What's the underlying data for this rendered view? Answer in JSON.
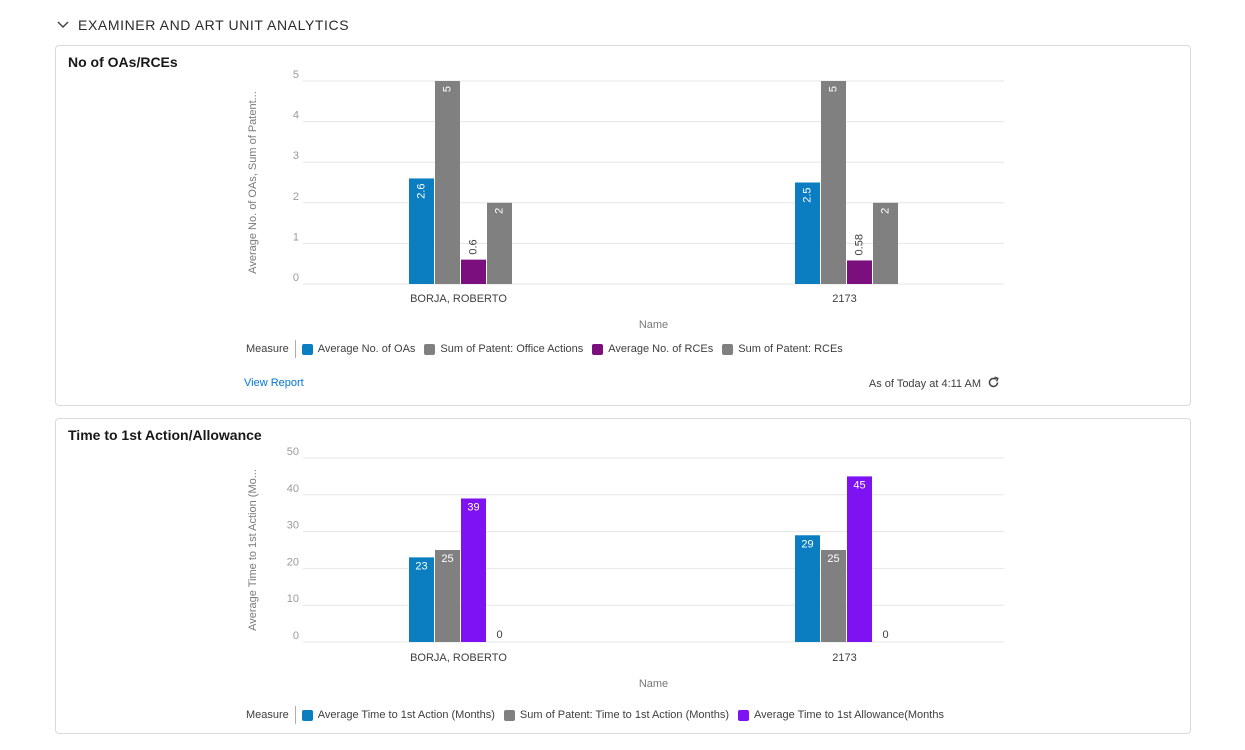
{
  "section": {
    "title": "EXAMINER AND ART UNIT ANALYTICS"
  },
  "cards": [
    {
      "title": "No of OAs/RCEs",
      "legend_label": "Measure",
      "view_report": "View Report",
      "as_of": "As of Today at 4:11 AM"
    },
    {
      "title": "Time to 1st Action/Allowance",
      "legend_label": "Measure"
    }
  ],
  "chart_data": [
    {
      "type": "bar",
      "title": "No of OAs/RCEs",
      "xlabel": "Name",
      "ylabel": "Average No. of OAs, Sum of Patent...",
      "ylim": [
        0,
        5
      ],
      "yticks": [
        0,
        1,
        2,
        3,
        4,
        5
      ],
      "grid": true,
      "legend_position": "bottom",
      "categories": [
        "BORJA, ROBERTO",
        "2173"
      ],
      "series": [
        {
          "name": "Average No. of OAs",
          "color": "#0b7ec2",
          "values": [
            2.6,
            2.5
          ],
          "labels": [
            "2.6",
            "2.5"
          ]
        },
        {
          "name": "Sum of Patent: Office Actions",
          "color": "#808080",
          "values": [
            5,
            5
          ],
          "labels": [
            "5",
            "5"
          ]
        },
        {
          "name": "Average No. of RCEs",
          "color": "#7b0f7e",
          "values": [
            0.6,
            0.58
          ],
          "labels": [
            "0.6",
            "0.58"
          ]
        },
        {
          "name": "Sum of Patent: RCEs",
          "color": "#808080",
          "values": [
            2,
            2
          ],
          "labels": [
            "2",
            "2"
          ]
        }
      ]
    },
    {
      "type": "bar",
      "title": "Time to 1st Action/Allowance",
      "xlabel": "Name",
      "ylabel": "Average Time to 1st Action (Mo...",
      "ylim": [
        0,
        50
      ],
      "yticks": [
        0,
        10,
        20,
        30,
        40,
        50
      ],
      "grid": true,
      "legend_position": "bottom",
      "categories": [
        "BORJA, ROBERTO",
        "2173"
      ],
      "series": [
        {
          "name": "Average Time to 1st Action (Months)",
          "color": "#0b7ec2",
          "values": [
            23,
            29
          ],
          "labels": [
            "23",
            "29"
          ]
        },
        {
          "name": "Sum of Patent: Time to 1st Action (Months)",
          "color": "#808080",
          "values": [
            25,
            25
          ],
          "labels": [
            "25",
            "25"
          ]
        },
        {
          "name": "Average Time to 1st Allowance(Months",
          "color": "#7f12f2",
          "values": [
            39,
            45
          ],
          "labels": [
            "39",
            "45"
          ]
        },
        {
          "name": "",
          "color": "#808080",
          "values": [
            0,
            0
          ],
          "labels": [
            "0",
            "0"
          ]
        }
      ]
    }
  ]
}
